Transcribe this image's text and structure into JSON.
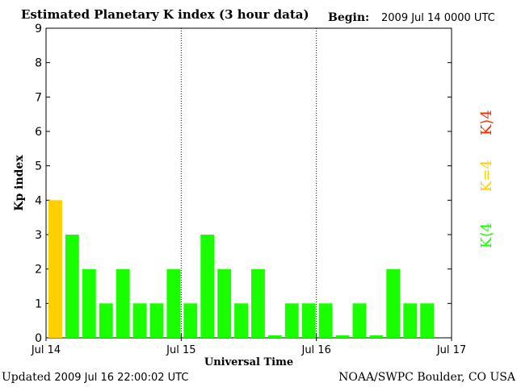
{
  "header": {
    "title": "Estimated Planetary K index (3 hour data)",
    "begin_label": "Begin:",
    "begin_value": "2009 Jul 14 0000 UTC"
  },
  "footer": {
    "updated_label": "Updated",
    "updated_value": "2009 Jul 16 22:00:02 UTC",
    "source": "NOAA/SWPC Boulder, CO USA"
  },
  "legend": [
    {
      "label": "K⟩4",
      "color": "#ff2a00"
    },
    {
      "label": "K=4",
      "color": "#ffd000"
    },
    {
      "label": "K⟨4",
      "color": "#1aff00"
    }
  ],
  "chart_data": {
    "type": "bar",
    "title": "Estimated Planetary K index (3 hour data)",
    "xlabel": "Universal Time",
    "ylabel": "Kp index",
    "ylim": [
      0,
      9
    ],
    "yticks": [
      0,
      1,
      2,
      3,
      4,
      5,
      6,
      7,
      8,
      9
    ],
    "xtick_labels": [
      "Jul 14",
      "Jul 15",
      "Jul 16",
      "Jul 17"
    ],
    "day_separators": [
      "Jul 15",
      "Jul 16"
    ],
    "interval": "3 hour",
    "values": [
      4,
      3,
      2,
      1,
      2,
      1,
      1,
      2,
      1,
      3,
      2,
      1,
      2,
      0.07,
      1,
      1,
      1,
      0.07,
      1,
      0.07,
      2,
      1,
      1
    ],
    "color_rule": {
      "below_4": "#1aff00",
      "equal_4": "#ffd000",
      "above_4": "#ff2a00"
    },
    "grid": false
  }
}
